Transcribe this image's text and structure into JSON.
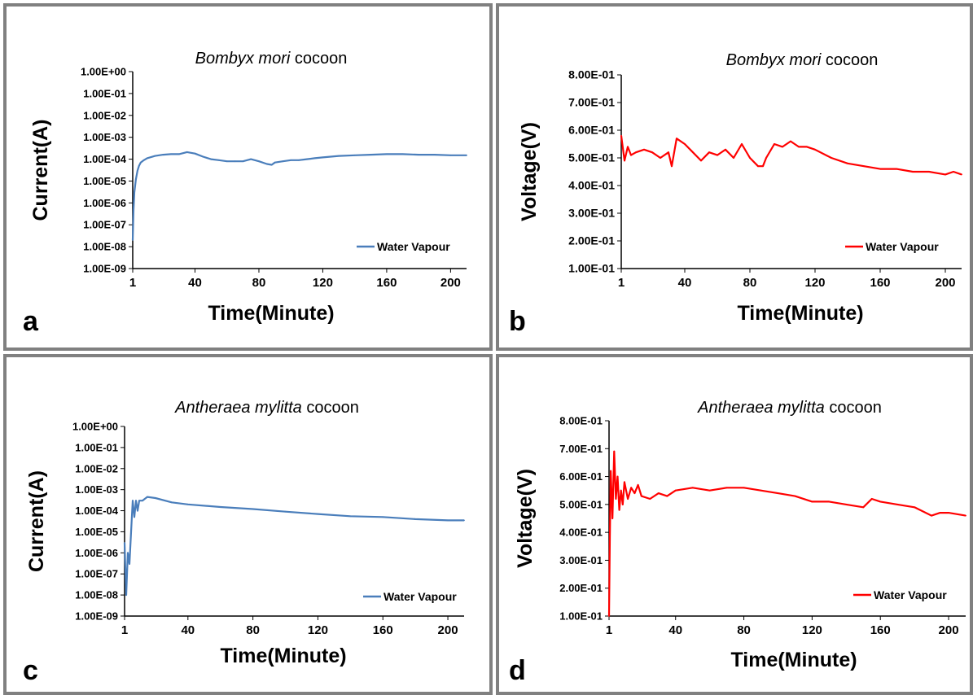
{
  "chart_data": [
    {
      "panel_letter": "a",
      "type": "line",
      "title_italic": "Bombyx mori",
      "title_rest": " cocoon",
      "xlabel": "Time(Minute)",
      "ylabel": "Current(A)",
      "yscale": "log",
      "ylim": [
        1e-09,
        1
      ],
      "y_tick_values": [
        1e-09,
        1e-08,
        1e-07,
        1e-06,
        1e-05,
        0.0001,
        0.001,
        0.01,
        0.1,
        1
      ],
      "y_tick_labels": [
        "1.00E-09",
        "1.00E-08",
        "1.00E-07",
        "1.00E-06",
        "1.00E-05",
        "1.00E-04",
        "1.00E-03",
        "1.00E-02",
        "1.00E-01",
        "1.00E+00"
      ],
      "xlim": [
        1,
        210
      ],
      "x_ticks": [
        1,
        40,
        80,
        120,
        160,
        200
      ],
      "legend": "top-right",
      "legend_position": "bottom-right",
      "grid": false,
      "series": [
        {
          "name": "Water Vapour",
          "color": "#4a7ebb",
          "x": [
            1,
            1.5,
            2,
            3,
            4,
            5,
            6,
            8,
            10,
            15,
            20,
            25,
            30,
            35,
            40,
            45,
            50,
            55,
            60,
            65,
            70,
            75,
            80,
            85,
            88,
            90,
            95,
            100,
            105,
            110,
            115,
            120,
            130,
            140,
            150,
            160,
            170,
            180,
            190,
            200,
            210
          ],
          "y": [
            2e-08,
            5e-07,
            3e-06,
            1.2e-05,
            3e-05,
            5e-05,
            7e-05,
            9e-05,
            0.00011,
            0.00014,
            0.00016,
            0.00017,
            0.00017,
            0.00021,
            0.00018,
            0.00013,
            0.0001,
            9e-05,
            8e-05,
            8e-05,
            8e-05,
            0.0001,
            8e-05,
            6e-05,
            5.5e-05,
            7e-05,
            8e-05,
            9e-05,
            9e-05,
            0.0001,
            0.00011,
            0.00012,
            0.00014,
            0.00015,
            0.00016,
            0.00017,
            0.00017,
            0.00016,
            0.00016,
            0.00015,
            0.00015
          ]
        }
      ]
    },
    {
      "panel_letter": "b",
      "type": "line",
      "title_italic": "Bombyx mori",
      "title_rest": " cocoon",
      "xlabel": "Time(Minute)",
      "ylabel": "Voltage(V)",
      "yscale": "linear",
      "ylim": [
        0.1,
        0.8
      ],
      "y_tick_values": [
        0.1,
        0.2,
        0.3,
        0.4,
        0.5,
        0.6,
        0.7,
        0.8
      ],
      "y_tick_labels": [
        "1.00E-01",
        "2.00E-01",
        "3.00E-01",
        "4.00E-01",
        "5.00E-01",
        "6.00E-01",
        "7.00E-01",
        "8.00E-01"
      ],
      "xlim": [
        1,
        210
      ],
      "x_ticks": [
        1,
        40,
        80,
        120,
        160,
        200
      ],
      "legend_position": "bottom-right",
      "grid": false,
      "series": [
        {
          "name": "Water Vapour",
          "color": "#ff0000",
          "x": [
            1,
            3,
            5,
            7,
            10,
            15,
            20,
            25,
            30,
            32,
            35,
            40,
            45,
            50,
            55,
            60,
            65,
            70,
            75,
            80,
            85,
            88,
            90,
            95,
            100,
            105,
            110,
            115,
            120,
            130,
            140,
            150,
            160,
            170,
            180,
            190,
            200,
            205,
            210
          ],
          "y": [
            0.58,
            0.49,
            0.54,
            0.51,
            0.52,
            0.53,
            0.52,
            0.5,
            0.52,
            0.47,
            0.57,
            0.55,
            0.52,
            0.49,
            0.52,
            0.51,
            0.53,
            0.5,
            0.55,
            0.5,
            0.47,
            0.47,
            0.5,
            0.55,
            0.54,
            0.56,
            0.54,
            0.54,
            0.53,
            0.5,
            0.48,
            0.47,
            0.46,
            0.46,
            0.45,
            0.45,
            0.44,
            0.45,
            0.44
          ]
        }
      ]
    },
    {
      "panel_letter": "c",
      "type": "line",
      "title_italic": "Antheraea mylitta",
      "title_rest": " cocoon",
      "xlabel": "Time(Minute)",
      "ylabel": "Current(A)",
      "yscale": "log",
      "ylim": [
        1e-09,
        1
      ],
      "y_tick_values": [
        1e-09,
        1e-08,
        1e-07,
        1e-06,
        1e-05,
        0.0001,
        0.001,
        0.01,
        0.1,
        1
      ],
      "y_tick_labels": [
        "1.00E-09",
        "1.00E-08",
        "1.00E-07",
        "1.00E-06",
        "1.00E-05",
        "1.00E-04",
        "1.00E-03",
        "1.00E-02",
        "1.00E-01",
        "1.00E+00"
      ],
      "xlim": [
        1,
        210
      ],
      "x_ticks": [
        1,
        40,
        80,
        120,
        160,
        200
      ],
      "legend_position": "bottom-right",
      "grid": false,
      "series": [
        {
          "name": "Water Vapour",
          "color": "#4a7ebb",
          "x": [
            1,
            2,
            3,
            4,
            5,
            6,
            7,
            8,
            9,
            10,
            12,
            15,
            20,
            30,
            40,
            60,
            80,
            100,
            120,
            140,
            160,
            180,
            200,
            210
          ],
          "y": [
            3e-06,
            1e-08,
            1e-06,
            3e-07,
            1e-05,
            0.0003,
            5e-05,
            0.0003,
            0.0001,
            0.0003,
            0.0003,
            0.00045,
            0.0004,
            0.00025,
            0.0002,
            0.00015,
            0.00012,
            9e-05,
            7e-05,
            5.5e-05,
            5e-05,
            4e-05,
            3.5e-05,
            3.5e-05
          ]
        }
      ]
    },
    {
      "panel_letter": "d",
      "type": "line",
      "title_italic": "Antheraea mylitta",
      "title_rest": " cocoon",
      "xlabel": "Time(Minute)",
      "ylabel": "Voltage(V)",
      "yscale": "linear",
      "ylim": [
        0.1,
        0.8
      ],
      "y_tick_values": [
        0.1,
        0.2,
        0.3,
        0.4,
        0.5,
        0.6,
        0.7,
        0.8
      ],
      "y_tick_labels": [
        "1.00E-01",
        "2.00E-01",
        "3.00E-01",
        "4.00E-01",
        "5.00E-01",
        "6.00E-01",
        "7.00E-01",
        "8.00E-01"
      ],
      "xlim": [
        1,
        210
      ],
      "x_ticks": [
        1,
        40,
        80,
        120,
        160,
        200
      ],
      "legend_position": "bottom-right",
      "grid": false,
      "series": [
        {
          "name": "Water Vapour",
          "color": "#ff0000",
          "x": [
            1,
            1.5,
            2,
            3,
            4,
            5,
            6,
            7,
            8,
            9,
            10,
            12,
            14,
            16,
            18,
            20,
            25,
            30,
            35,
            40,
            50,
            60,
            70,
            80,
            90,
            100,
            110,
            120,
            130,
            140,
            150,
            155,
            160,
            170,
            180,
            190,
            195,
            200,
            210
          ],
          "y": [
            0.1,
            0.38,
            0.62,
            0.45,
            0.69,
            0.52,
            0.6,
            0.48,
            0.55,
            0.5,
            0.58,
            0.52,
            0.56,
            0.54,
            0.57,
            0.53,
            0.52,
            0.54,
            0.53,
            0.55,
            0.56,
            0.55,
            0.56,
            0.56,
            0.55,
            0.54,
            0.53,
            0.51,
            0.51,
            0.5,
            0.49,
            0.52,
            0.51,
            0.5,
            0.49,
            0.46,
            0.47,
            0.47,
            0.46
          ]
        }
      ]
    }
  ]
}
